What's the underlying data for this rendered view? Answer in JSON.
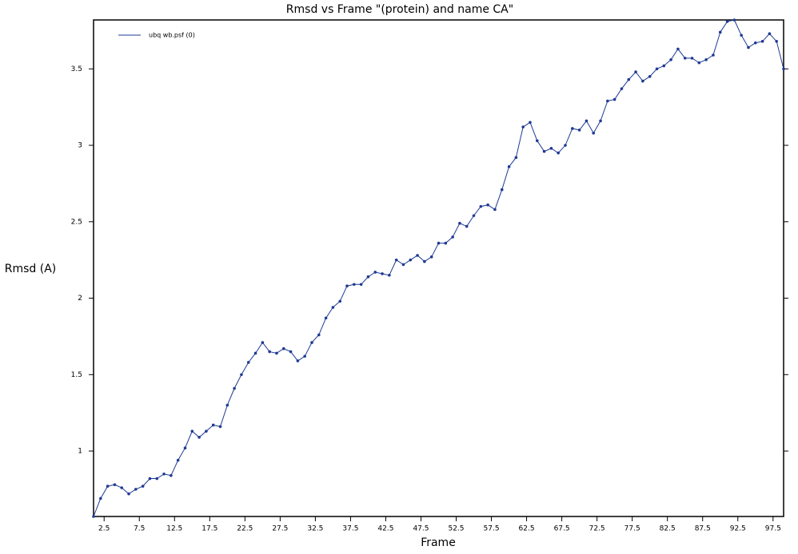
{
  "chart_data": {
    "type": "line",
    "title": "Rmsd vs Frame \"(protein) and name CA\"",
    "x_label": "Frame",
    "y_label": "Rmsd (A)",
    "x": [
      1,
      2,
      3,
      4,
      5,
      6,
      7,
      8,
      9,
      10,
      11,
      12,
      13,
      14,
      15,
      16,
      17,
      18,
      19,
      20,
      21,
      22,
      23,
      24,
      25,
      26,
      27,
      28,
      29,
      30,
      31,
      32,
      33,
      34,
      35,
      36,
      37,
      38,
      39,
      40,
      41,
      42,
      43,
      44,
      45,
      46,
      47,
      48,
      49,
      50,
      51,
      52,
      53,
      54,
      55,
      56,
      57,
      58,
      59,
      60,
      61,
      62,
      63,
      64,
      65,
      66,
      67,
      68,
      69,
      70,
      71,
      72,
      73,
      74,
      75,
      76,
      77,
      78,
      79,
      80,
      81,
      82,
      83,
      84,
      85,
      86,
      87,
      88,
      89,
      90,
      91,
      92,
      93,
      94,
      95,
      96,
      97,
      98,
      99
    ],
    "series": [
      {
        "name": "ubq wb.psf (0)",
        "color": "#1f3a93",
        "values": [
          0.572,
          0.69,
          0.77,
          0.78,
          0.76,
          0.72,
          0.75,
          0.77,
          0.82,
          0.82,
          0.85,
          0.84,
          0.94,
          1.02,
          1.13,
          1.09,
          1.13,
          1.17,
          1.16,
          1.3,
          1.41,
          1.5,
          1.58,
          1.64,
          1.71,
          1.65,
          1.64,
          1.67,
          1.65,
          1.59,
          1.62,
          1.71,
          1.76,
          1.87,
          1.94,
          1.98,
          2.08,
          2.09,
          2.09,
          2.14,
          2.17,
          2.16,
          2.15,
          2.25,
          2.22,
          2.25,
          2.28,
          2.24,
          2.27,
          2.36,
          2.36,
          2.4,
          2.49,
          2.47,
          2.54,
          2.6,
          2.61,
          2.58,
          2.71,
          2.86,
          2.92,
          3.12,
          3.15,
          3.03,
          2.96,
          2.98,
          2.95,
          3.0,
          3.11,
          3.1,
          3.16,
          3.08,
          3.16,
          3.29,
          3.3,
          3.37,
          3.43,
          3.48,
          3.42,
          3.45,
          3.5,
          3.52,
          3.56,
          3.63,
          3.57,
          3.57,
          3.54,
          3.56,
          3.59,
          3.74,
          3.81,
          3.82,
          3.72,
          3.64,
          3.67,
          3.68,
          3.73,
          3.68,
          3.5
        ]
      }
    ],
    "xlim": [
      1,
      99
    ],
    "ylim": [
      0.572,
      3.82
    ],
    "xticks": [
      2.5,
      7.5,
      12.5,
      17.5,
      22.5,
      27.5,
      32.5,
      37.5,
      42.5,
      47.5,
      52.5,
      57.5,
      62.5,
      67.5,
      72.5,
      77.5,
      82.5,
      87.5,
      92.5,
      97.5
    ],
    "yticks": [
      1,
      1.5,
      2,
      2.5,
      3,
      3.5
    ],
    "title_color": "#8b2323",
    "legend": "upper left"
  }
}
